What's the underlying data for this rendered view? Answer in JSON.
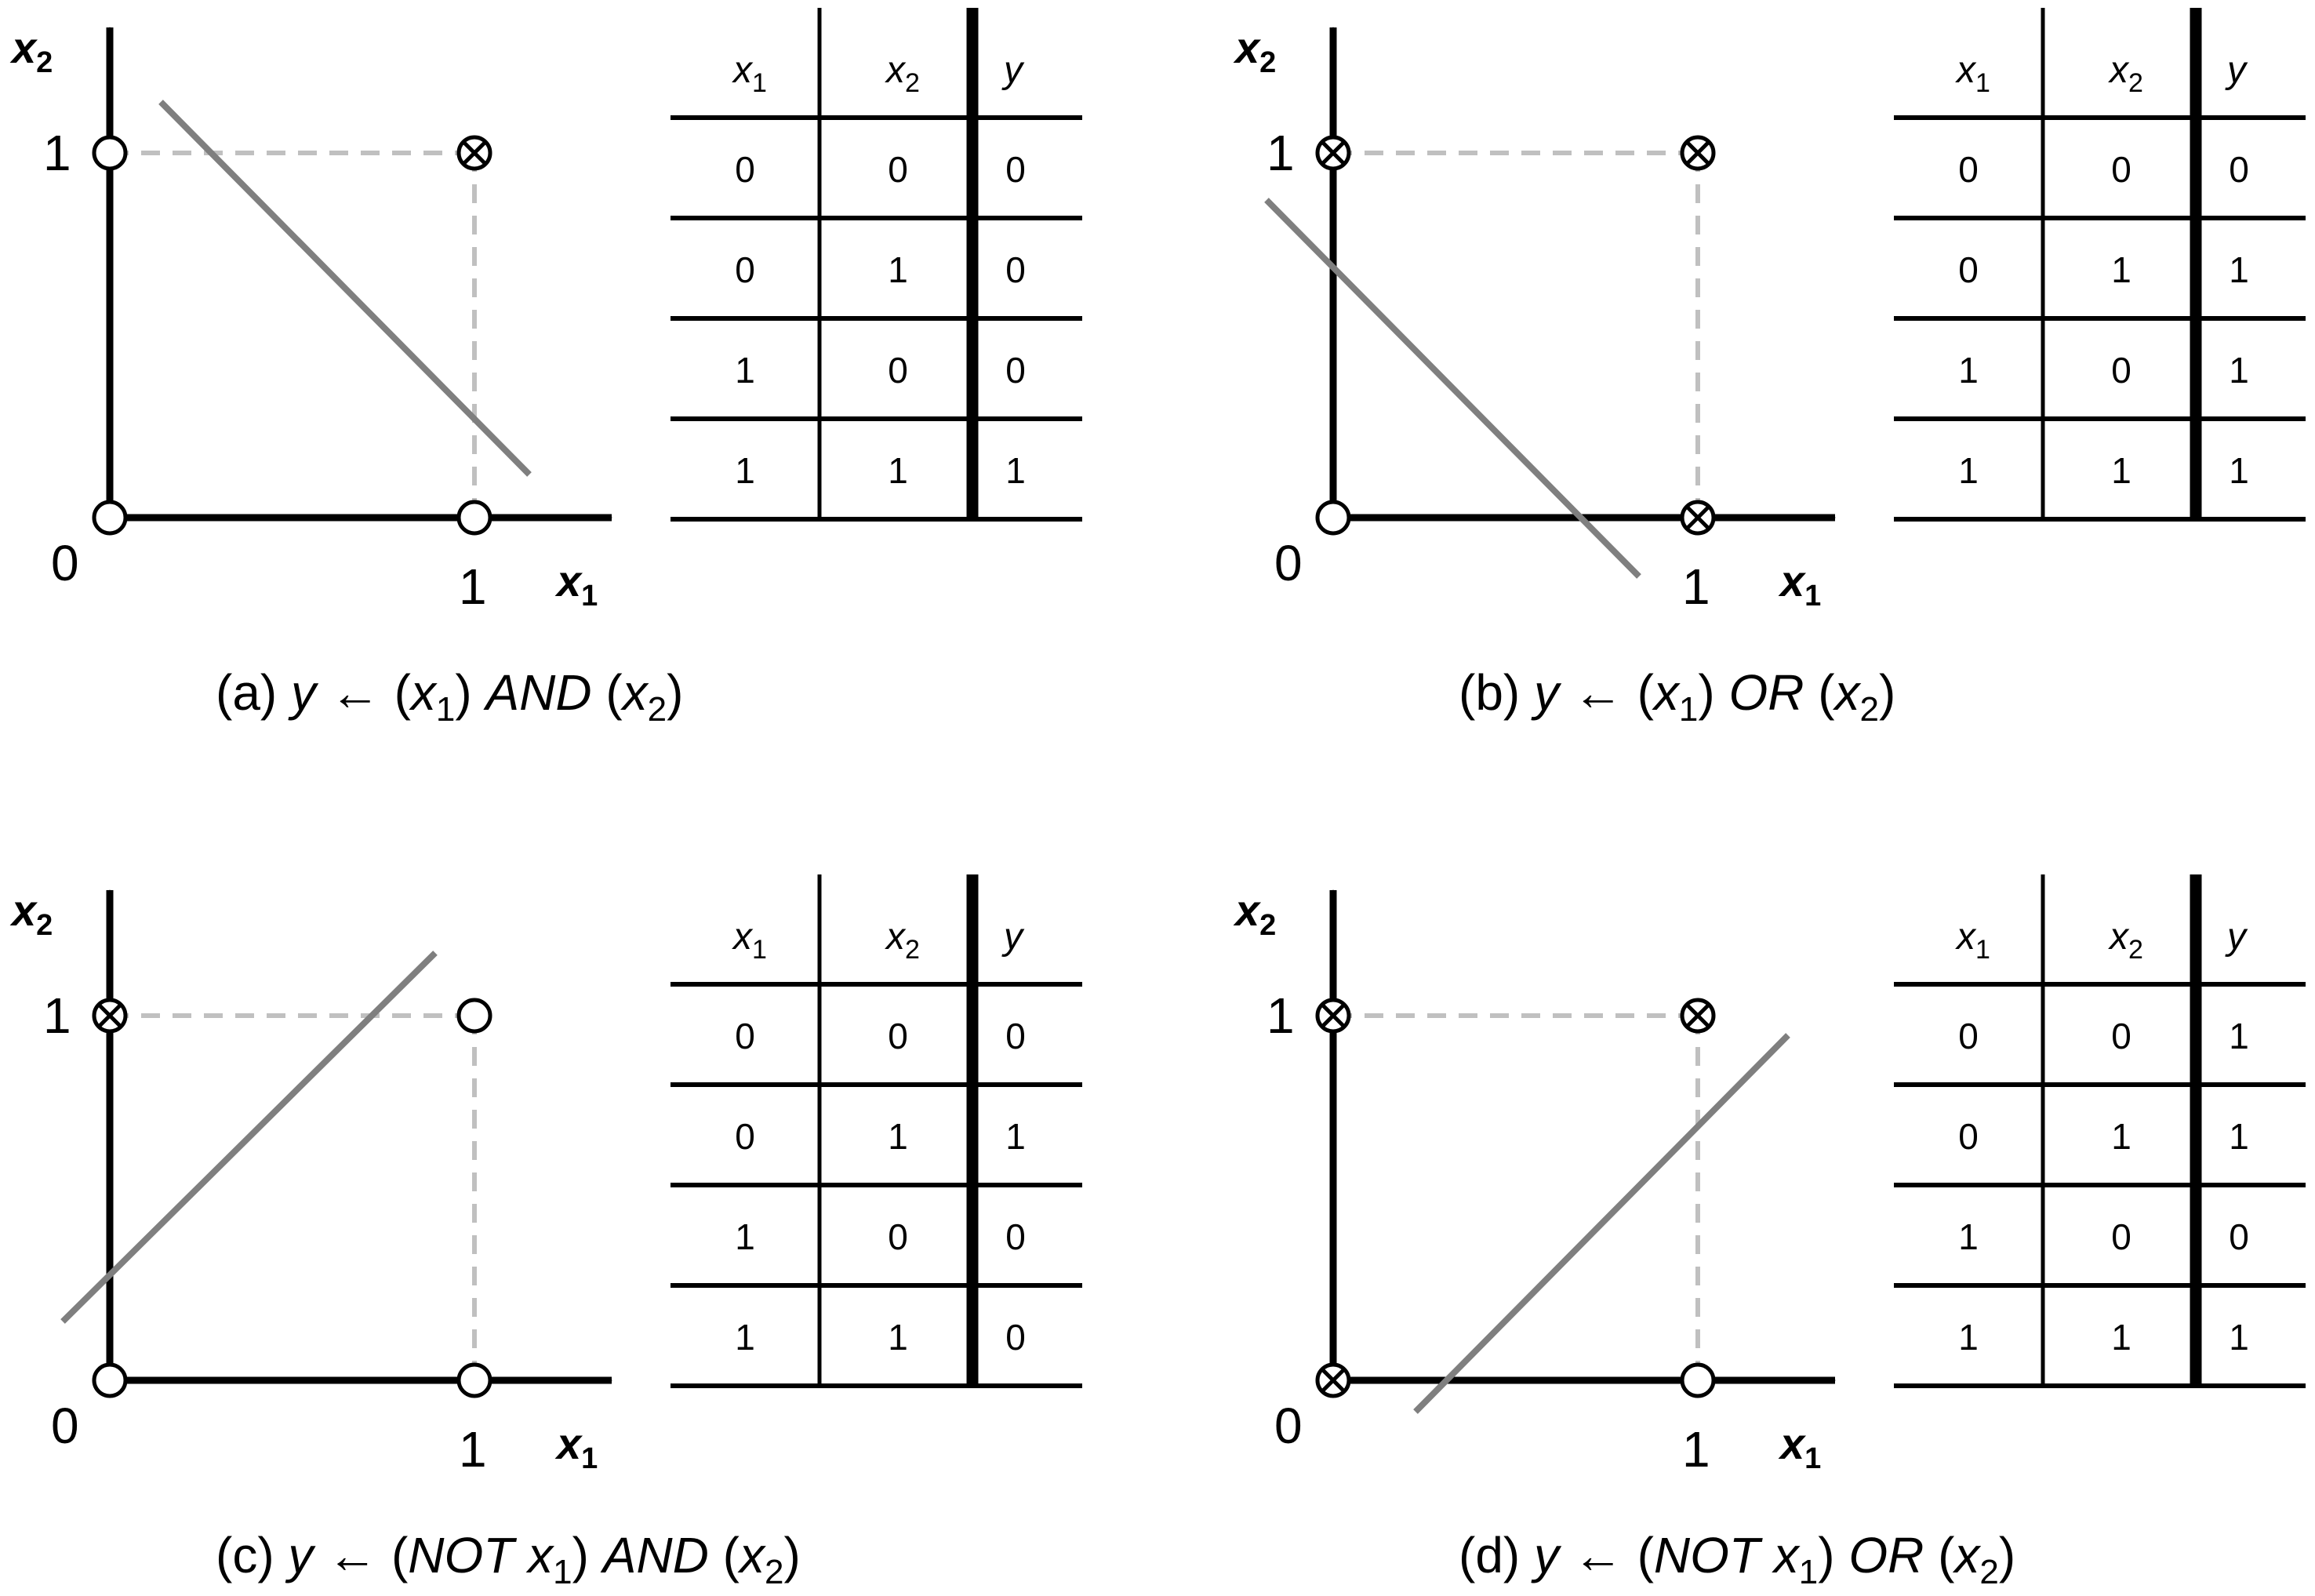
{
  "colors": {
    "ink": "#000000",
    "separator_line": "#7f7f7f",
    "dashed_guide": "#c0c0c0"
  },
  "axis_labels": {
    "x_main": "x",
    "x_sub": "1",
    "y_main": "x",
    "y_sub": "2"
  },
  "tick_labels": {
    "zero": "0",
    "one": "1"
  },
  "table_headers": [
    {
      "main": "x",
      "sub": "1"
    },
    {
      "main": "x",
      "sub": "2"
    },
    {
      "main": "y",
      "sub": ""
    }
  ],
  "symbols": {
    "true_marker": "circle-with-cross",
    "false_marker": "open-circle"
  },
  "panels": [
    {
      "id": "a",
      "caption": {
        "tag": "(a) ",
        "lhs": "y",
        "arrow": " ← ",
        "open1": "(",
        "v1": "x",
        "v1_sub": "1",
        "close1": ") ",
        "op": "AND",
        "open2": " (",
        "v2": "x",
        "v2_sub": "2",
        "close2": ")"
      },
      "points": [
        {
          "x1": 0,
          "x2": 0,
          "y": 0
        },
        {
          "x1": 0,
          "x2": 1,
          "y": 0
        },
        {
          "x1": 1,
          "x2": 0,
          "y": 0
        },
        {
          "x1": 1,
          "x2": 1,
          "y": 1
        }
      ],
      "rows": [
        [
          "0",
          "0",
          "0"
        ],
        [
          "0",
          "1",
          "0"
        ],
        [
          "1",
          "0",
          "0"
        ],
        [
          "1",
          "1",
          "1"
        ]
      ]
    },
    {
      "id": "b",
      "caption": {
        "tag": "(b) ",
        "lhs": "y",
        "arrow": " ← ",
        "open1": "(",
        "v1": "x",
        "v1_sub": "1",
        "close1": ") ",
        "op": "OR",
        "open2": " (",
        "v2": "x",
        "v2_sub": "2",
        "close2": ")"
      },
      "points": [
        {
          "x1": 0,
          "x2": 0,
          "y": 0
        },
        {
          "x1": 0,
          "x2": 1,
          "y": 1
        },
        {
          "x1": 1,
          "x2": 0,
          "y": 1
        },
        {
          "x1": 1,
          "x2": 1,
          "y": 1
        }
      ],
      "rows": [
        [
          "0",
          "0",
          "0"
        ],
        [
          "0",
          "1",
          "1"
        ],
        [
          "1",
          "0",
          "1"
        ],
        [
          "1",
          "1",
          "1"
        ]
      ]
    },
    {
      "id": "c",
      "caption": {
        "tag": "(c) ",
        "lhs": "y",
        "arrow": " ← ",
        "open1": "(",
        "v1": "NOT x",
        "v1_sub": "1",
        "close1": ") ",
        "op": "AND",
        "open2": " (",
        "v2": "x",
        "v2_sub": "2",
        "close2": ")"
      },
      "points": [
        {
          "x1": 0,
          "x2": 0,
          "y": 0
        },
        {
          "x1": 0,
          "x2": 1,
          "y": 1
        },
        {
          "x1": 1,
          "x2": 0,
          "y": 0
        },
        {
          "x1": 1,
          "x2": 1,
          "y": 0
        }
      ],
      "rows": [
        [
          "0",
          "0",
          "0"
        ],
        [
          "0",
          "1",
          "1"
        ],
        [
          "1",
          "0",
          "0"
        ],
        [
          "1",
          "1",
          "0"
        ]
      ]
    },
    {
      "id": "d",
      "caption": {
        "tag": "(d) ",
        "lhs": "y",
        "arrow": " ← ",
        "open1": "(",
        "v1": "NOT x",
        "v1_sub": "1",
        "close1": ") ",
        "op": "OR",
        "open2": " (",
        "v2": "x",
        "v2_sub": "2",
        "close2": ")"
      },
      "points": [
        {
          "x1": 0,
          "x2": 0,
          "y": 1
        },
        {
          "x1": 0,
          "x2": 1,
          "y": 1
        },
        {
          "x1": 1,
          "x2": 0,
          "y": 0
        },
        {
          "x1": 1,
          "x2": 1,
          "y": 1
        }
      ],
      "rows": [
        [
          "0",
          "0",
          "1"
        ],
        [
          "0",
          "1",
          "1"
        ],
        [
          "1",
          "0",
          "0"
        ],
        [
          "1",
          "1",
          "1"
        ]
      ]
    }
  ]
}
